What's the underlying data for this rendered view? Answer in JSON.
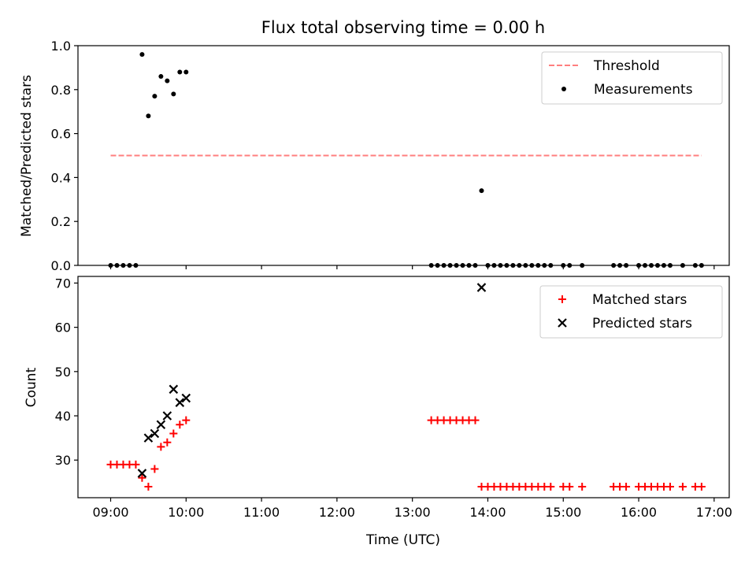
{
  "chart_data": [
    {
      "type": "scatter",
      "title": "Flux total observing time = 0.00 h",
      "ylabel": "Matched/Predicted stars",
      "xlabel": "",
      "ylim": [
        0,
        1.0
      ],
      "xlim": [
        "08:34",
        "17:12"
      ],
      "x_ticks": [
        "09:00",
        "10:00",
        "11:00",
        "12:00",
        "13:00",
        "14:00",
        "15:00",
        "16:00",
        "17:00"
      ],
      "y_ticks": [
        "0.0",
        "0.2",
        "0.4",
        "0.6",
        "0.8",
        "1.0"
      ],
      "legend_position": "top-right",
      "threshold": {
        "name": "Threshold",
        "value": 0.5,
        "x_start": "09:00",
        "x_end": "16:50",
        "color": "#ff7f7f"
      },
      "series": [
        {
          "name": "Measurements",
          "color": "#000000",
          "x": [
            "09:00",
            "09:05",
            "09:10",
            "09:15",
            "09:20",
            "09:25",
            "09:30",
            "09:35",
            "09:40",
            "09:45",
            "09:50",
            "09:55",
            "10:00",
            "13:15",
            "13:20",
            "13:25",
            "13:30",
            "13:35",
            "13:40",
            "13:45",
            "13:50",
            "13:55",
            "14:00",
            "14:05",
            "14:10",
            "14:15",
            "14:20",
            "14:25",
            "14:30",
            "14:35",
            "14:40",
            "14:45",
            "14:50",
            "15:00",
            "15:05",
            "15:15",
            "15:40",
            "15:45",
            "15:50",
            "16:00",
            "16:05",
            "16:10",
            "16:15",
            "16:20",
            "16:25",
            "16:35",
            "16:45",
            "16:50"
          ],
          "y": [
            0,
            0,
            0,
            0,
            0,
            0.96,
            0.68,
            0.77,
            0.86,
            0.84,
            0.78,
            0.88,
            0.88,
            0,
            0,
            0,
            0,
            0,
            0,
            0,
            0,
            0.34,
            0,
            0,
            0,
            0,
            0,
            0,
            0,
            0,
            0,
            0,
            0,
            0,
            0,
            0,
            0,
            0,
            0,
            0,
            0,
            0,
            0,
            0,
            0,
            0,
            0,
            0
          ]
        }
      ]
    },
    {
      "type": "scatter",
      "title": "",
      "ylabel": "Count",
      "xlabel": "Time (UTC)",
      "ylim": [
        21.5,
        71.5
      ],
      "xlim": [
        "08:34",
        "17:12"
      ],
      "x_ticks": [
        "09:00",
        "10:00",
        "11:00",
        "12:00",
        "13:00",
        "14:00",
        "15:00",
        "16:00",
        "17:00"
      ],
      "y_ticks": [
        "30",
        "40",
        "50",
        "60",
        "70"
      ],
      "legend_position": "top-right",
      "series": [
        {
          "name": "Matched stars",
          "marker": "plus",
          "color": "#ff0000",
          "x": [
            "09:00",
            "09:05",
            "09:10",
            "09:15",
            "09:20",
            "09:25",
            "09:30",
            "09:35",
            "09:40",
            "09:45",
            "09:50",
            "09:55",
            "10:00",
            "13:15",
            "13:20",
            "13:25",
            "13:30",
            "13:35",
            "13:40",
            "13:45",
            "13:50",
            "13:55",
            "14:00",
            "14:05",
            "14:10",
            "14:15",
            "14:20",
            "14:25",
            "14:30",
            "14:35",
            "14:40",
            "14:45",
            "14:50",
            "15:00",
            "15:05",
            "15:15",
            "15:40",
            "15:45",
            "15:50",
            "16:00",
            "16:05",
            "16:10",
            "16:15",
            "16:20",
            "16:25",
            "16:35",
            "16:45",
            "16:50"
          ],
          "y": [
            29,
            29,
            29,
            29,
            29,
            26,
            24,
            28,
            33,
            34,
            36,
            38,
            39,
            39,
            39,
            39,
            39,
            39,
            39,
            39,
            39,
            24,
            24,
            24,
            24,
            24,
            24,
            24,
            24,
            24,
            24,
            24,
            24,
            24,
            24,
            24,
            24,
            24,
            24,
            24,
            24,
            24,
            24,
            24,
            24,
            24,
            24,
            24
          ]
        },
        {
          "name": "Predicted stars",
          "marker": "x",
          "color": "#000000",
          "x": [
            "09:25",
            "09:30",
            "09:35",
            "09:40",
            "09:45",
            "09:50",
            "09:55",
            "10:00",
            "13:55"
          ],
          "y": [
            27,
            35,
            36,
            38,
            40,
            46,
            43,
            44,
            69
          ]
        }
      ]
    }
  ]
}
